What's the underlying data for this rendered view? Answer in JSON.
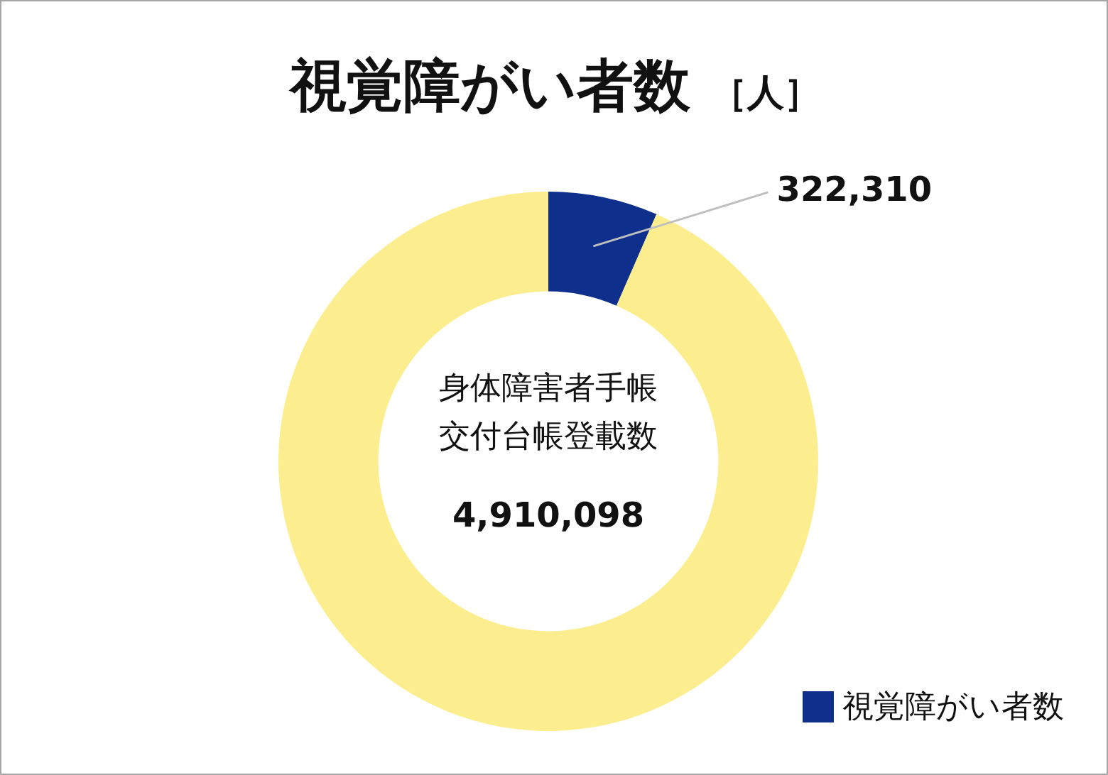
{
  "chart_data": {
    "type": "donut",
    "title": "視覚障がい者数",
    "subtitle": "［人］",
    "categories": [
      "視覚障がい者数",
      null
    ],
    "values": [
      322310,
      4587788
    ],
    "colors": [
      "#0e2f8c",
      "#fcee8f"
    ],
    "value_labels": [
      "322,310",
      null
    ],
    "annotations": [
      "身体障害者手帳",
      "交付台帳登載数",
      "4,910,098"
    ],
    "legend": "bottom right"
  }
}
